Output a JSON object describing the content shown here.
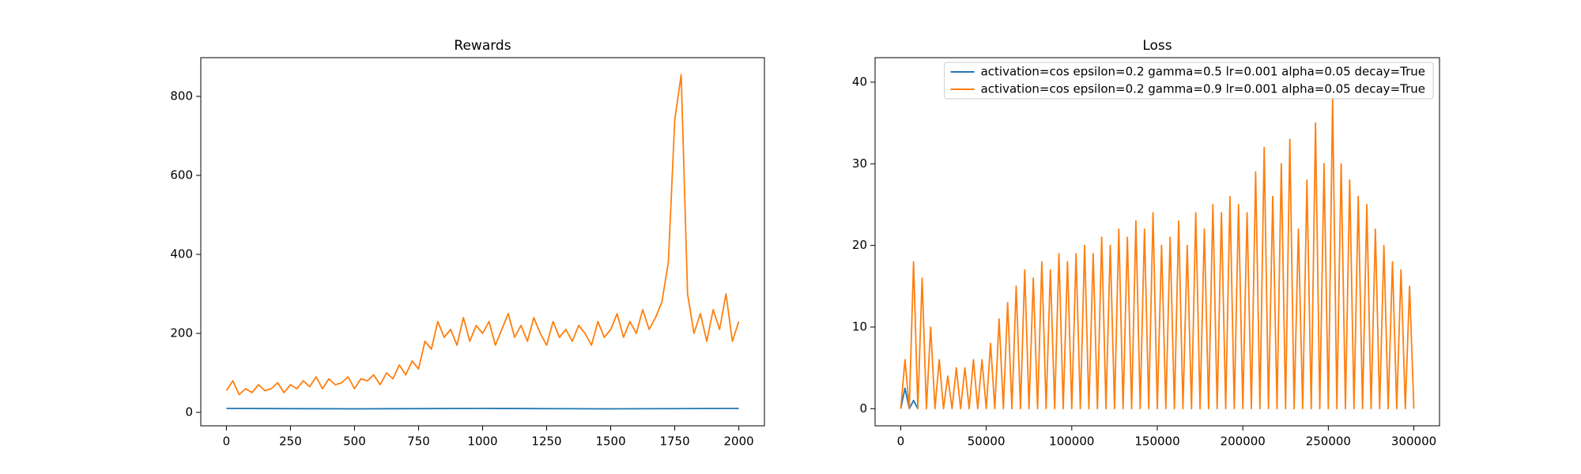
{
  "chart_data": [
    {
      "type": "line",
      "title": "Rewards",
      "x": [
        0,
        25,
        50,
        75,
        100,
        125,
        150,
        175,
        200,
        225,
        250,
        275,
        300,
        325,
        350,
        375,
        400,
        425,
        450,
        475,
        500,
        525,
        550,
        575,
        600,
        625,
        650,
        675,
        700,
        725,
        750,
        775,
        800,
        825,
        850,
        875,
        900,
        925,
        950,
        975,
        1000,
        1025,
        1050,
        1075,
        1100,
        1125,
        1150,
        1175,
        1200,
        1225,
        1250,
        1275,
        1300,
        1325,
        1350,
        1375,
        1400,
        1425,
        1450,
        1475,
        1500,
        1525,
        1550,
        1575,
        1600,
        1625,
        1650,
        1675,
        1700,
        1725,
        1750,
        1775,
        1800,
        1825,
        1850,
        1875,
        1900,
        1925,
        1950,
        1975,
        2000
      ],
      "series": [
        {
          "color": "#1f77b4",
          "x": [
            0,
            500,
            1000,
            1500,
            2000
          ],
          "values": [
            10,
            9,
            10,
            9,
            10
          ]
        },
        {
          "color": "#ff7f0e",
          "values": [
            55,
            80,
            45,
            60,
            50,
            70,
            55,
            60,
            75,
            50,
            70,
            60,
            80,
            65,
            90,
            60,
            85,
            70,
            75,
            90,
            60,
            85,
            80,
            95,
            70,
            100,
            85,
            120,
            95,
            130,
            110,
            180,
            160,
            230,
            190,
            210,
            170,
            240,
            180,
            220,
            200,
            230,
            170,
            210,
            250,
            190,
            220,
            180,
            240,
            200,
            170,
            230,
            190,
            210,
            180,
            220,
            200,
            170,
            230,
            190,
            210,
            250,
            190,
            230,
            200,
            260,
            210,
            240,
            280,
            380,
            740,
            855,
            300,
            200,
            250,
            180,
            260,
            210,
            300,
            180,
            230
          ]
        }
      ],
      "xlim": [
        -100,
        2100
      ],
      "xticks": [
        0,
        250,
        500,
        750,
        1000,
        1250,
        1500,
        1750,
        2000
      ],
      "ylim": [
        -34,
        898
      ],
      "yticks": [
        0,
        200,
        400,
        600,
        800
      ]
    },
    {
      "type": "line",
      "title": "Loss",
      "x": [
        0,
        2500,
        5000,
        7500,
        10000,
        12500,
        15000,
        17500,
        20000,
        22500,
        25000,
        27500,
        30000,
        32500,
        35000,
        37500,
        40000,
        42500,
        45000,
        47500,
        50000,
        52500,
        55000,
        57500,
        60000,
        62500,
        65000,
        67500,
        70000,
        72500,
        75000,
        77500,
        80000,
        82500,
        85000,
        87500,
        90000,
        92500,
        95000,
        97500,
        100000,
        102500,
        105000,
        107500,
        110000,
        112500,
        115000,
        117500,
        120000,
        122500,
        125000,
        127500,
        130000,
        132500,
        135000,
        137500,
        140000,
        142500,
        145000,
        147500,
        150000,
        152500,
        155000,
        157500,
        160000,
        162500,
        165000,
        167500,
        170000,
        172500,
        175000,
        177500,
        180000,
        182500,
        185000,
        187500,
        190000,
        192500,
        195000,
        197500,
        200000,
        202500,
        205000,
        207500,
        210000,
        212500,
        215000,
        217500,
        220000,
        222500,
        225000,
        227500,
        230000,
        232500,
        235000,
        237500,
        240000,
        242500,
        245000,
        247500,
        250000,
        252500,
        255000,
        257500,
        260000,
        262500,
        265000,
        267500,
        270000,
        272500,
        275000,
        277500,
        280000,
        282500,
        285000,
        287500,
        290000,
        292500,
        295000,
        297500,
        300000
      ],
      "series": [
        {
          "name": "activation=cos epsilon=0.2 gamma=0.5 lr=0.001 alpha=0.05 decay=True",
          "color": "#1f77b4",
          "x": [
            0,
            2500,
            5000,
            7500,
            10000
          ],
          "values": [
            0,
            2.5,
            0,
            1,
            0
          ]
        },
        {
          "name": "activation=cos epsilon=0.2 gamma=0.9 lr=0.001 alpha=0.05 decay=True",
          "color": "#ff7f0e",
          "values": [
            0,
            6,
            0,
            18,
            0,
            16,
            0,
            10,
            0,
            6,
            0,
            4,
            0,
            5,
            0,
            5,
            0,
            6,
            0,
            6,
            0,
            8,
            0,
            11,
            0,
            13,
            0,
            15,
            0,
            17,
            0,
            16,
            0,
            18,
            0,
            17,
            0,
            19,
            0,
            18,
            0,
            19,
            0,
            20,
            0,
            19,
            0,
            21,
            0,
            20,
            0,
            22,
            0,
            21,
            0,
            23,
            0,
            22,
            0,
            24,
            0,
            20,
            0,
            21,
            0,
            23,
            0,
            20,
            0,
            24,
            0,
            22,
            0,
            25,
            0,
            24,
            0,
            26,
            0,
            25,
            0,
            24,
            0,
            29,
            0,
            32,
            0,
            26,
            0,
            30,
            0,
            33,
            0,
            22,
            0,
            28,
            0,
            35,
            0,
            30,
            0,
            38,
            0,
            30,
            0,
            28,
            0,
            26,
            0,
            25,
            0,
            22,
            0,
            20,
            0,
            18,
            0,
            17,
            0,
            15,
            0
          ]
        }
      ],
      "xlim": [
        -15000,
        315000
      ],
      "xticks": [
        0,
        50000,
        100000,
        150000,
        200000,
        250000,
        300000
      ],
      "ylim": [
        -2.1,
        43
      ],
      "yticks": [
        0,
        10,
        20,
        30,
        40
      ],
      "legend": "upper right"
    }
  ]
}
